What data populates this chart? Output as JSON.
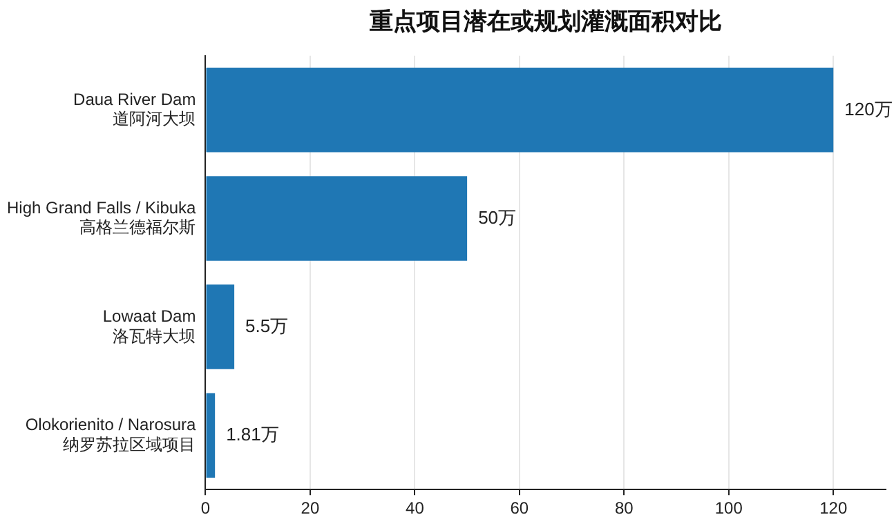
{
  "chart_data": {
    "type": "bar",
    "orientation": "horizontal",
    "title": "重点项目潜在或规划灌溉面积对比",
    "categories": [
      "Daua River Dam\n道阿河大坝",
      "High Grand Falls / Kibuka\n高格兰德福尔斯",
      "Lowaat Dam\n洛瓦特大坝",
      "Olokorienito / Narosura\n纳罗苏拉区域项目"
    ],
    "values": [
      120,
      50,
      5.5,
      1.81
    ],
    "color": "#1f77b4",
    "value_labels": [
      "120万",
      "50万",
      "5.5万",
      "1.81万"
    ],
    "xlim": [
      0,
      130
    ],
    "xticks": [
      0,
      20,
      40,
      60,
      80,
      100,
      120
    ],
    "grid": "x",
    "legend": false
  }
}
